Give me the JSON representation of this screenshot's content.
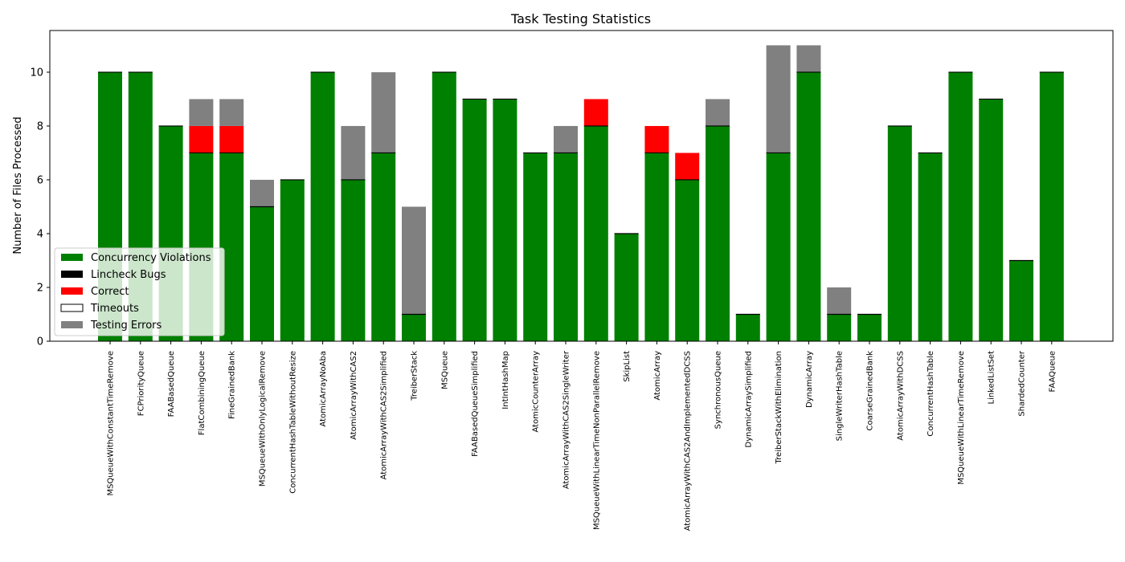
{
  "chart_data": {
    "type": "bar",
    "stacked": true,
    "title": "Task Testing Statistics",
    "xlabel": "",
    "ylabel": "Number of Files Processed",
    "ylim": [
      0,
      11.55
    ],
    "yticks": [
      0,
      2,
      4,
      6,
      8,
      10
    ],
    "legend_position": "lower-left",
    "categories": [
      "MSQueueWithConstantTimeRemove",
      "FCPriorityQueue",
      "FAABasedQueue",
      "FlatCombiningQueue",
      "FineGrainedBank",
      "MSQueueWithOnlyLogicalRemove",
      "ConcurrentHashTableWithoutResize",
      "AtomicArrayNoAba",
      "AtomicArrayWithCAS2",
      "AtomicArrayWithCAS2Simplified",
      "TreiberStack",
      "MSQueue",
      "FAABasedQueueSimplified",
      "IntIntHashMap",
      "AtomicCounterArray",
      "AtomicArrayWithCAS2SingleWriter",
      "MSQueueWithLinearTimeNonParallelRemove",
      "SkipList",
      "AtomicArray",
      "AtomicArrayWithCAS2AndImplementedDCSS",
      "SynchronousQueue",
      "DynamicArraySimplified",
      "TreiberStackWithElimination",
      "DynamicArray",
      "SingleWriterHashTable",
      "CoarseGrainedBank",
      "AtomicArrayWithDCSS",
      "ConcurrentHashTable",
      "MSQueueWithLinearTimeRemove",
      "LinkedListSet",
      "ShardedCounter",
      "FAAQueue"
    ],
    "series": [
      {
        "name": "Concurrency Violations",
        "color": "#008000",
        "values": [
          10,
          10,
          8,
          7,
          7,
          5,
          6,
          10,
          6,
          7,
          1,
          10,
          9,
          9,
          7,
          7,
          8,
          4,
          7,
          6,
          8,
          1,
          7,
          10,
          1,
          1,
          8,
          7,
          10,
          9,
          3,
          10
        ]
      },
      {
        "name": "Lincheck Bugs",
        "color": "#000000",
        "values": [
          0,
          0,
          0,
          0,
          0,
          0,
          0,
          0,
          0,
          0,
          0,
          0,
          0,
          0,
          0,
          0,
          0,
          0,
          0,
          0,
          0,
          0,
          0,
          0,
          0,
          0,
          0,
          0,
          0,
          0,
          0,
          0
        ]
      },
      {
        "name": "Correct",
        "color": "#ff0000",
        "values": [
          0,
          0,
          0,
          1,
          1,
          0,
          0,
          0,
          0,
          0,
          0,
          0,
          0,
          0,
          0,
          0,
          1,
          0,
          1,
          1,
          0,
          0,
          0,
          0,
          0,
          0,
          0,
          0,
          0,
          0,
          0,
          0
        ]
      },
      {
        "name": "Timeouts",
        "color": "#ffffff",
        "values": [
          0,
          0,
          0,
          0,
          0,
          0,
          0,
          0,
          0,
          0,
          0,
          0,
          0,
          0,
          0,
          0,
          0,
          0,
          0,
          0,
          0,
          0,
          0,
          0,
          0,
          0,
          0,
          0,
          0,
          0,
          0,
          0
        ]
      },
      {
        "name": "Testing Errors",
        "color": "#808080",
        "values": [
          0,
          0,
          0,
          1,
          1,
          1,
          0,
          0,
          2,
          3,
          4,
          0,
          0,
          0,
          0,
          1,
          0,
          0,
          0,
          0,
          1,
          0,
          4,
          1,
          1,
          0,
          0,
          0,
          0,
          0,
          0,
          0
        ]
      }
    ]
  }
}
